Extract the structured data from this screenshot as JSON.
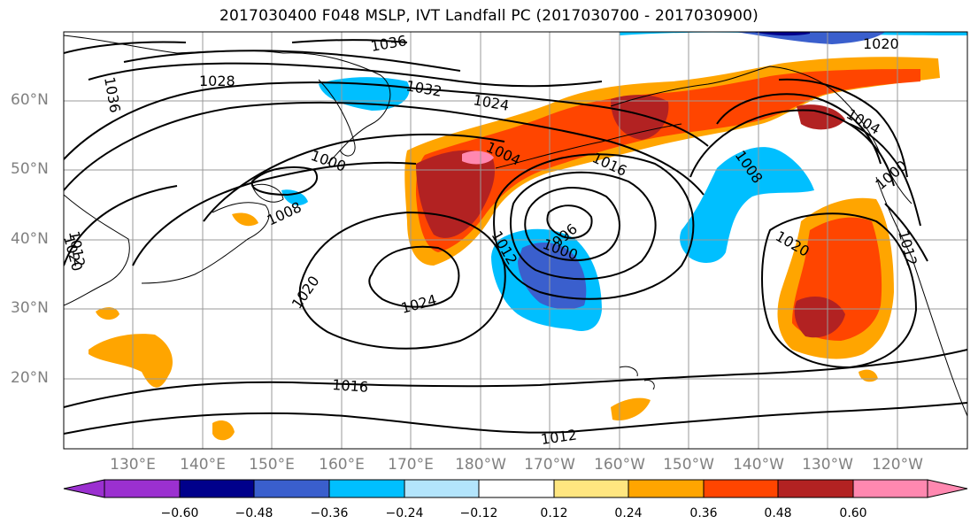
{
  "title": "2017030400 F048 MSLP, IVT Landfall PC (2017030700 - 2017030900)",
  "lat_labels": [
    "60°N",
    "50°N",
    "40°N",
    "30°N",
    "20°N"
  ],
  "lon_labels": [
    "130°E",
    "140°E",
    "150°E",
    "160°E",
    "170°E",
    "180°W",
    "170°W",
    "160°W",
    "150°W",
    "140°W",
    "130°W",
    "120°W"
  ],
  "colorbar": {
    "ticks": [
      "−0.60",
      "−0.48",
      "−0.36",
      "−0.24",
      "−0.12",
      "0.12",
      "0.24",
      "0.36",
      "0.48",
      "0.60"
    ],
    "colors": [
      "#9b30d0",
      "#00008b",
      "#3a5fcd",
      "#00bfff",
      "#b3e5fc",
      "#ffffff",
      "#ffe680",
      "#ffa500",
      "#ff4500",
      "#b22222",
      "#ff88b0"
    ]
  },
  "contour_labels": [
    {
      "text": "1036"
    },
    {
      "text": "1020"
    },
    {
      "text": "1028"
    },
    {
      "text": "1032"
    },
    {
      "text": "1024"
    },
    {
      "text": "1036"
    },
    {
      "text": "1004"
    },
    {
      "text": "1000"
    },
    {
      "text": "1016"
    },
    {
      "text": "1008"
    },
    {
      "text": "1008"
    },
    {
      "text": "1000"
    },
    {
      "text": "1020"
    },
    {
      "text": "1012"
    },
    {
      "text": "996"
    },
    {
      "text": "1000"
    },
    {
      "text": "1012"
    },
    {
      "text": "1020"
    },
    {
      "text": "1024"
    },
    {
      "text": "1020"
    },
    {
      "text": "1016"
    },
    {
      "text": "1012"
    },
    {
      "text": "1004"
    },
    {
      "text": "1012"
    }
  ]
}
